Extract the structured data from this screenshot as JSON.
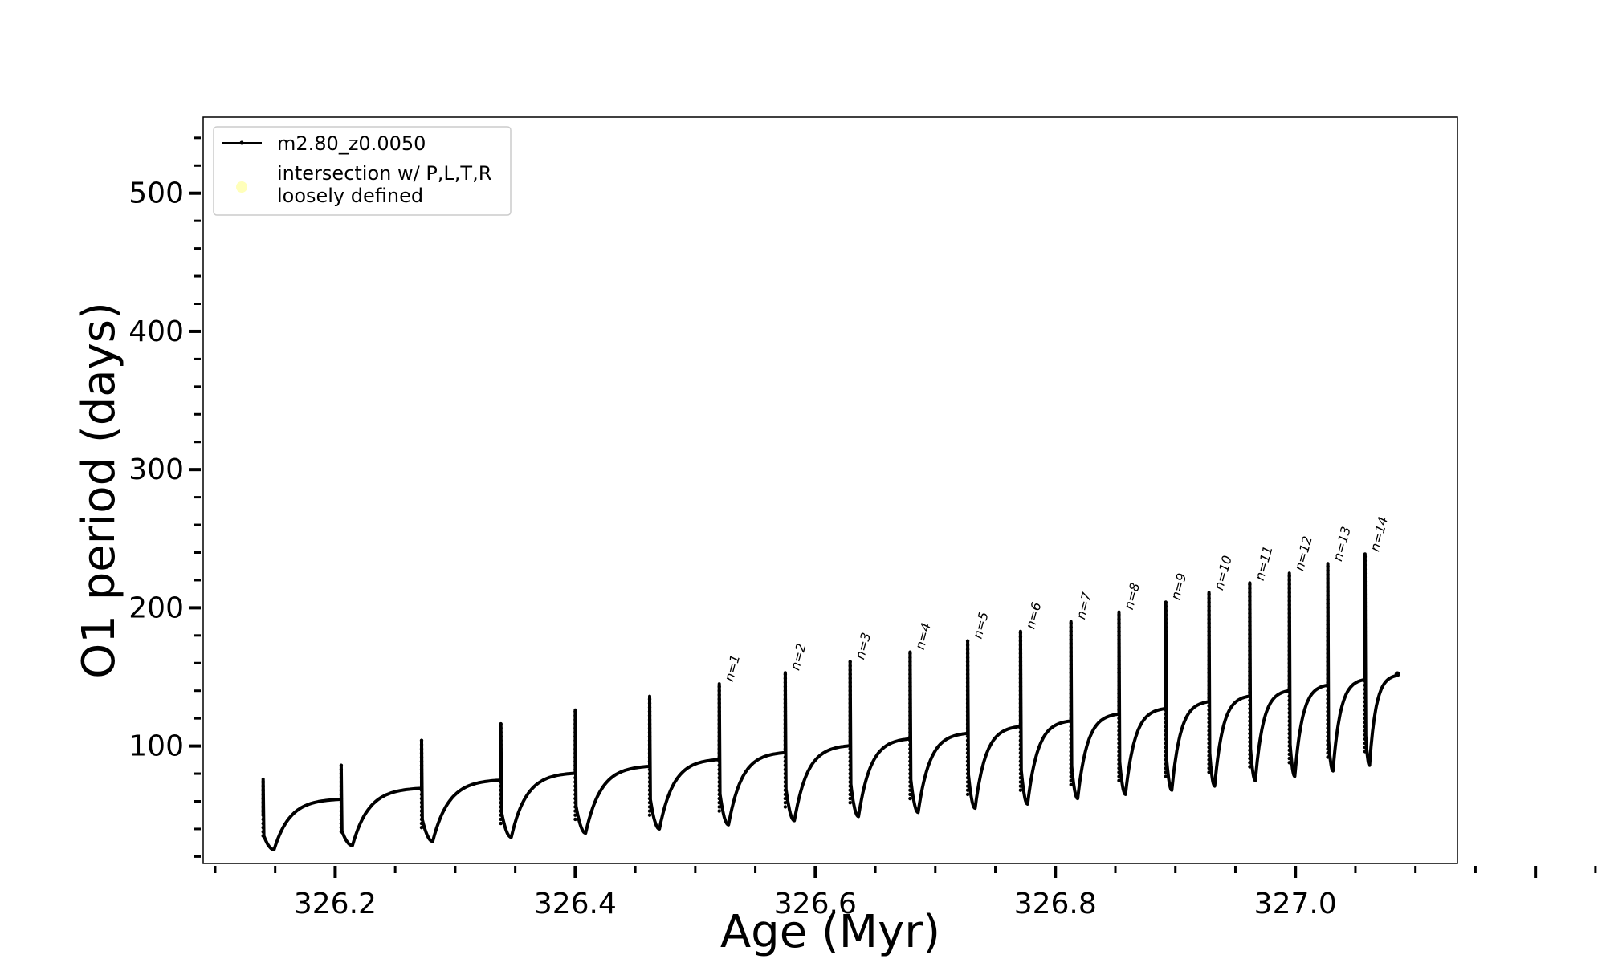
{
  "chart_data": {
    "type": "line",
    "title": "",
    "xlabel": "Age (Myr)",
    "ylabel": "O1 period (days)",
    "xlim": [
      326.09,
      327.135
    ],
    "ylim": [
      15,
      555
    ],
    "xticks": [
      326.2,
      326.4,
      326.6,
      326.8,
      327.0
    ],
    "xtick_labels": [
      "326.2",
      "326.4",
      "326.6",
      "326.8",
      "327.0"
    ],
    "yticks": [
      100,
      200,
      300,
      400,
      500
    ],
    "ytick_labels": [
      "100",
      "200",
      "300",
      "400",
      "500"
    ],
    "grid": false,
    "legend": {
      "placement": "top-left",
      "entries": [
        {
          "label": "m2.80_z0.0050",
          "marker": "line-dot",
          "color": "#000000"
        },
        {
          "label_lines": [
            "intersection w/ P,L,T,R",
            "loosely defined"
          ],
          "marker": "circle",
          "color": "#ffffb3"
        }
      ]
    },
    "series": [
      {
        "name": "m2.80_z0.0050",
        "color": "#000000",
        "start_x": 326.14,
        "start_y": 50,
        "end_x": 327.085,
        "end_y": 152,
        "pulses": [
          {
            "x": 326.14,
            "peak": 76,
            "valley": 25
          },
          {
            "x": 326.205,
            "peak": 86,
            "valley": 28
          },
          {
            "x": 326.272,
            "peak": 104,
            "valley": 31
          },
          {
            "x": 326.338,
            "peak": 116,
            "valley": 34
          },
          {
            "x": 326.4,
            "peak": 126,
            "valley": 37
          },
          {
            "x": 326.462,
            "peak": 136,
            "valley": 40
          },
          {
            "x": 326.52,
            "peak": 145,
            "valley": 43
          },
          {
            "x": 326.575,
            "peak": 153,
            "valley": 46
          },
          {
            "x": 326.629,
            "peak": 161,
            "valley": 49
          },
          {
            "x": 326.679,
            "peak": 168,
            "valley": 52
          },
          {
            "x": 326.727,
            "peak": 176,
            "valley": 55
          },
          {
            "x": 326.771,
            "peak": 183,
            "valley": 58
          },
          {
            "x": 326.813,
            "peak": 190,
            "valley": 62
          },
          {
            "x": 326.853,
            "peak": 197,
            "valley": 65
          },
          {
            "x": 326.892,
            "peak": 204,
            "valley": 68
          },
          {
            "x": 326.928,
            "peak": 211,
            "valley": 71
          },
          {
            "x": 326.962,
            "peak": 218,
            "valley": 75
          },
          {
            "x": 326.995,
            "peak": 225,
            "valley": 78
          },
          {
            "x": 327.027,
            "peak": 232,
            "valley": 82
          },
          {
            "x": 327.058,
            "peak": 239,
            "valley": 86
          }
        ],
        "plateaus": [
          62,
          70,
          76,
          81,
          86,
          91,
          96,
          101,
          106,
          110,
          115,
          119,
          124,
          128,
          133,
          137,
          141,
          145,
          149
        ]
      }
    ],
    "annotations": [
      {
        "text": "n=1",
        "x": 326.52,
        "y": 145
      },
      {
        "text": "n=2",
        "x": 326.575,
        "y": 153
      },
      {
        "text": "n=3",
        "x": 326.629,
        "y": 161
      },
      {
        "text": "n=4",
        "x": 326.679,
        "y": 168
      },
      {
        "text": "n=5",
        "x": 326.727,
        "y": 176
      },
      {
        "text": "n=6",
        "x": 326.771,
        "y": 183
      },
      {
        "text": "n=7",
        "x": 326.813,
        "y": 190
      },
      {
        "text": "n=8",
        "x": 326.853,
        "y": 197
      },
      {
        "text": "n=9",
        "x": 326.892,
        "y": 204
      },
      {
        "text": "n=10",
        "x": 326.928,
        "y": 211
      },
      {
        "text": "n=11",
        "x": 326.962,
        "y": 218
      },
      {
        "text": "n=12",
        "x": 326.995,
        "y": 225
      },
      {
        "text": "n=13",
        "x": 327.027,
        "y": 232
      },
      {
        "text": "n=14",
        "x": 327.058,
        "y": 239
      }
    ]
  }
}
